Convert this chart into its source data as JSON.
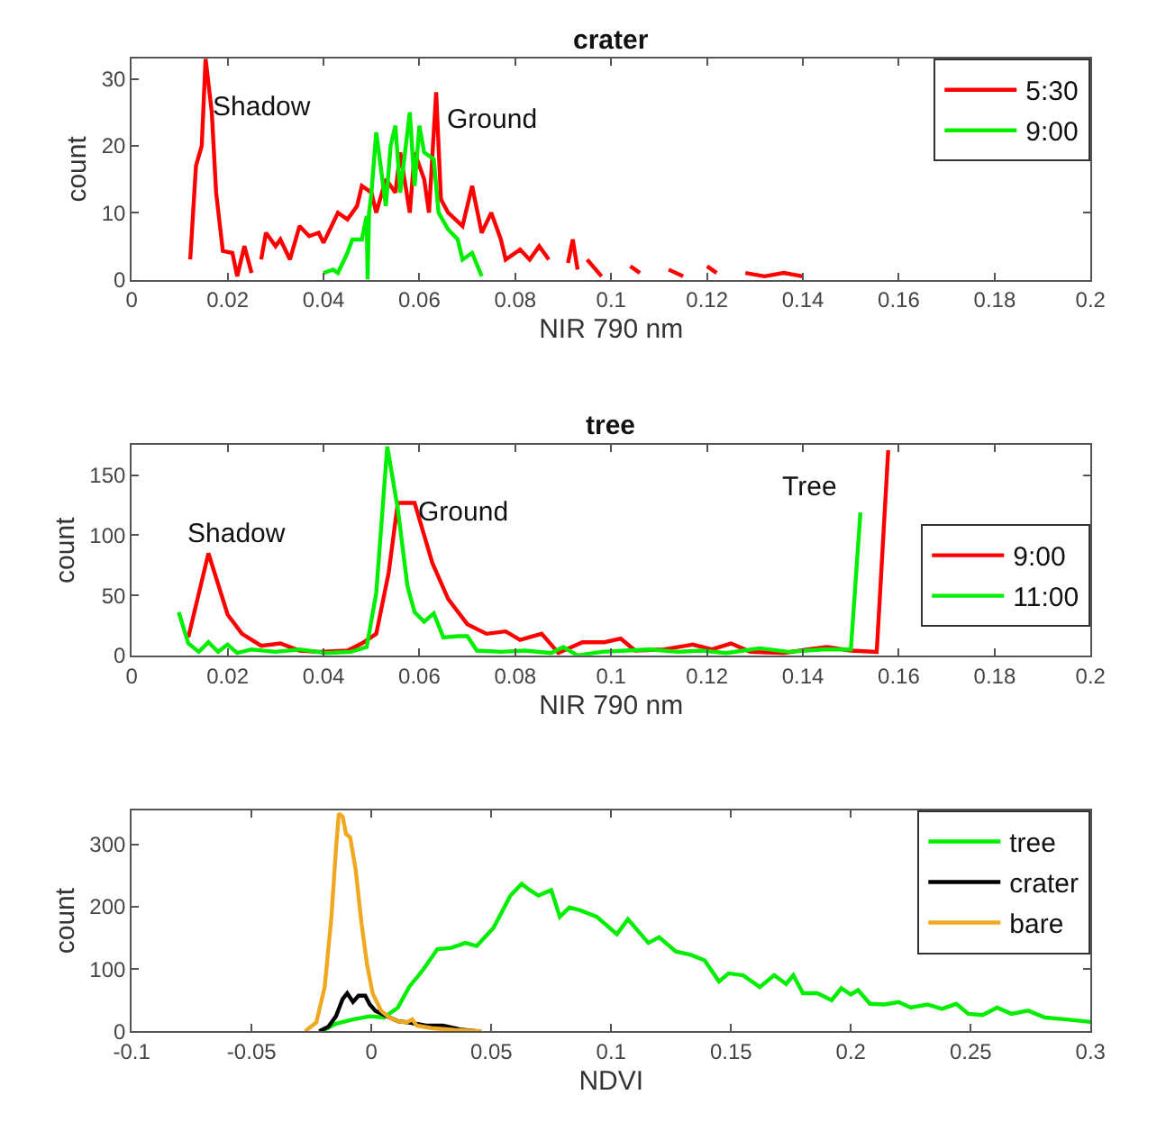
{
  "chart_data": [
    {
      "type": "line",
      "title": "crater",
      "xlabel": "NIR 790 nm",
      "ylabel": "count",
      "xlim": [
        0,
        0.2
      ],
      "xticks": [
        0,
        0.02,
        0.04,
        0.06,
        0.08,
        0.1,
        0.12,
        0.14,
        0.16,
        0.18,
        0.2
      ],
      "ylim": [
        0,
        33
      ],
      "yticks": [
        0,
        10,
        20,
        30
      ],
      "legend": "top right",
      "grid": false,
      "annotations": [
        "Shadow",
        "Ground"
      ],
      "series": [
        {
          "name": "5:30",
          "color": "#ff0000",
          "x": [
            0.0122,
            0.0134,
            0.0146,
            0.0154,
            0.0167,
            0.0176,
            0.019,
            0.021,
            0.022,
            0.0235,
            0.025,
            0.026,
            0.027,
            0.028,
            0.03,
            0.031,
            0.033,
            0.035,
            0.037,
            0.039,
            0.04,
            0.043,
            0.045,
            0.047,
            0.048,
            0.05,
            0.051,
            0.053,
            0.055,
            0.056,
            0.058,
            0.059,
            0.061,
            0.062,
            0.0635,
            0.0645,
            0.066,
            0.069,
            0.071,
            0.073,
            0.075,
            0.077,
            0.078,
            0.081,
            0.083,
            0.085,
            0.087,
            0.089,
            0.091,
            0.092,
            0.093,
            0.094,
            0.095,
            0.098,
            0.101,
            0.104,
            0.106,
            0.109,
            0.112,
            0.115,
            0.118,
            0.12,
            0.122,
            0.125,
            0.128,
            0.132,
            0.136,
            0.14
          ],
          "values": [
            3,
            17,
            20,
            33,
            25,
            13,
            4.3,
            4,
            0.5,
            5,
            1,
            null,
            3,
            7,
            5,
            6,
            3,
            8,
            6.5,
            7,
            5.5,
            10,
            9,
            11,
            14,
            13,
            10,
            15,
            13,
            19,
            10,
            19,
            15,
            10,
            28,
            12,
            10,
            8,
            14,
            7,
            10,
            6,
            3,
            4.5,
            3,
            5,
            3,
            null,
            2.5,
            6,
            1.5,
            null,
            3,
            0.5,
            null,
            2,
            1,
            null,
            1.5,
            0.5,
            null,
            2,
            1,
            null,
            1,
            0.5,
            1,
            0.5
          ]
        },
        {
          "name": "9:00",
          "color": "#00ee00",
          "x": [
            0.04,
            0.042,
            0.043,
            0.045,
            0.046,
            0.048,
            0.049,
            0.0492,
            0.0495,
            0.05,
            0.051,
            0.053,
            0.054,
            0.055,
            0.056,
            0.058,
            0.059,
            0.06,
            0.061,
            0.063,
            0.064,
            0.066,
            0.068,
            0.069,
            0.071,
            0.073
          ],
          "values": [
            1,
            1.5,
            1,
            4,
            6,
            6,
            9.5,
            0,
            10,
            13,
            22,
            11,
            20,
            23,
            13,
            25,
            14,
            23,
            19,
            18,
            10,
            7.5,
            6,
            3,
            4,
            0.5
          ]
        }
      ]
    },
    {
      "type": "line",
      "title": "tree",
      "xlabel": "NIR 790 nm",
      "ylabel": "count",
      "xlim": [
        0,
        0.2
      ],
      "xticks": [
        0,
        0.02,
        0.04,
        0.06,
        0.08,
        0.1,
        0.12,
        0.14,
        0.16,
        0.18,
        0.2
      ],
      "ylim": [
        0,
        175
      ],
      "yticks": [
        0,
        50,
        100,
        150
      ],
      "legend": "right",
      "grid": false,
      "annotations": [
        "Shadow",
        "Ground",
        "Tree"
      ],
      "series": [
        {
          "name": "9:00",
          "color": "#ff0000",
          "x": [
            0.0118,
            0.016,
            0.02,
            0.023,
            0.027,
            0.031,
            0.035,
            0.039,
            0.045,
            0.048,
            0.051,
            0.0536,
            0.0555,
            0.059,
            0.0627,
            0.066,
            0.07,
            0.074,
            0.078,
            0.081,
            0.0855,
            0.089,
            0.094,
            0.0986,
            0.102,
            0.105,
            0.111,
            0.117,
            0.121,
            0.125,
            0.129,
            0.136,
            0.141,
            0.145,
            0.15,
            0.1554,
            0.1578
          ],
          "values": [
            15,
            85,
            34,
            18,
            8,
            10,
            4,
            3,
            4,
            10,
            18,
            69,
            127,
            127,
            77,
            47,
            26,
            18,
            20,
            13,
            18,
            2,
            11,
            11,
            14,
            4,
            5,
            9,
            5,
            10,
            3,
            2,
            5,
            7,
            4,
            3,
            171
          ]
        },
        {
          "name": "11:00",
          "color": "#00ee00",
          "x": [
            0.0098,
            0.0118,
            0.014,
            0.016,
            0.018,
            0.02,
            0.022,
            0.025,
            0.03,
            0.035,
            0.0405,
            0.0457,
            0.049,
            0.051,
            0.0533,
            0.0555,
            0.0575,
            0.059,
            0.061,
            0.063,
            0.065,
            0.068,
            0.07,
            0.072,
            0.077,
            0.082,
            0.0875,
            0.09,
            0.093,
            0.098,
            0.103,
            0.108,
            0.114,
            0.119,
            0.124,
            0.131,
            0.137,
            0.144,
            0.15,
            0.152
          ],
          "values": [
            36,
            10,
            3,
            11,
            3,
            9,
            2,
            5,
            3,
            5,
            2,
            3,
            7,
            52,
            174,
            122,
            58,
            36,
            28,
            35,
            15,
            16,
            16,
            4,
            3,
            4,
            2,
            7,
            0,
            3,
            4,
            5,
            3,
            4,
            2,
            6,
            3,
            5,
            5,
            119
          ]
        }
      ]
    },
    {
      "type": "line",
      "xlabel": "NDVI",
      "ylabel": "count",
      "xlim": [
        -0.1,
        0.3
      ],
      "xticks": [
        -0.1,
        -0.05,
        0,
        0.05,
        0.1,
        0.15,
        0.2,
        0.25,
        0.3
      ],
      "ylim": [
        0,
        355
      ],
      "yticks": [
        0,
        100,
        200,
        300
      ],
      "legend": "top right",
      "grid": false,
      "series": [
        {
          "name": "tree",
          "color": "#00ee00",
          "x": [
            -0.0207,
            -0.0148,
            -0.0077,
            -0.0007,
            0.0052,
            0.011,
            0.0157,
            0.0216,
            0.0275,
            0.0333,
            0.0392,
            0.0439,
            0.0509,
            0.058,
            0.0627,
            0.066,
            0.0697,
            0.075,
            0.0786,
            0.0826,
            0.0873,
            0.094,
            0.1024,
            0.107,
            0.1155,
            0.12,
            0.127,
            0.133,
            0.139,
            0.145,
            0.149,
            0.155,
            0.162,
            0.168,
            0.173,
            0.176,
            0.18,
            0.186,
            0.192,
            0.196,
            0.2,
            0.203,
            0.208,
            0.214,
            0.22,
            0.225,
            0.232,
            0.238,
            0.244,
            0.249,
            0.255,
            0.261,
            0.267,
            0.274,
            0.281,
            0.29,
            0.3
          ],
          "values": [
            0,
            12,
            19,
            24,
            22,
            38,
            71,
            99,
            132,
            134,
            142,
            137,
            166,
            218,
            237,
            227,
            218,
            227,
            184,
            199,
            194,
            184,
            156,
            180,
            142,
            151,
            128,
            123,
            114,
            80,
            93,
            90,
            71,
            90,
            76,
            90,
            61,
            61,
            50,
            69,
            59,
            66,
            44,
            43,
            47,
            38,
            43,
            36,
            44,
            28,
            26,
            38,
            28,
            33,
            22,
            19,
            15
          ]
        },
        {
          "name": "crater",
          "color": "#000000",
          "x": [
            -0.0218,
            -0.018,
            -0.0148,
            -0.012,
            -0.0101,
            -0.0077,
            -0.0054,
            -0.0026,
            -0.0007,
            0.0016,
            0.0063,
            0.011,
            0.0157,
            0.0228,
            0.0298,
            0.0368,
            0.044
          ],
          "values": [
            0,
            7,
            24,
            52,
            61,
            47,
            57,
            57,
            43,
            33,
            24,
            16,
            14,
            9,
            9,
            3,
            0
          ]
        },
        {
          "name": "bare",
          "color": "#f0a820",
          "x": [
            -0.0277,
            -0.023,
            -0.0195,
            -0.0167,
            -0.0148,
            -0.0136,
            -0.012,
            -0.0106,
            -0.0089,
            -0.0066,
            -0.0042,
            -0.0019,
            0.0005,
            0.004,
            0.0075,
            0.011,
            0.0146,
            0.017,
            0.019,
            0.025,
            0.0345,
            0.046
          ],
          "values": [
            0,
            14,
            71,
            184,
            293,
            350,
            345,
            317,
            312,
            260,
            175,
            109,
            61,
            33,
            22,
            16,
            14,
            19,
            9,
            5,
            2,
            0
          ]
        }
      ]
    }
  ]
}
